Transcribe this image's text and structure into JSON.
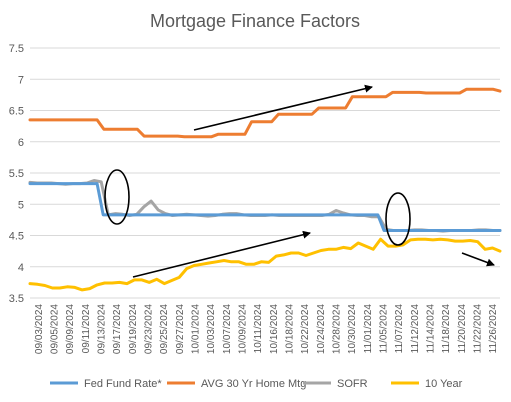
{
  "chart_data": {
    "type": "line",
    "title": "Mortgage Finance Factors",
    "ylim": [
      3.5,
      7.5
    ],
    "yticks": [
      "3.5",
      "4",
      "4.5",
      "5",
      "5.5",
      "6",
      "6.5",
      "7",
      "7.5"
    ],
    "grid": "horizontal",
    "legend_position": "bottom",
    "x_tick_labels": [
      "09/03/2024",
      "09/05/2024",
      "09/09/2024",
      "09/11/2024",
      "09/13/2024",
      "09/17/2024",
      "09/19/2024",
      "09/23/2024",
      "09/25/2024",
      "09/27/2024",
      "10/01/2024",
      "10/03/2024",
      "10/07/2024",
      "10/09/2024",
      "10/11/2024",
      "10/16/2024",
      "10/18/2024",
      "10/22/2024",
      "10/24/2024",
      "10/28/2024",
      "10/30/2024",
      "11/01/2024",
      "11/05/2024",
      "11/07/2024",
      "11/12/2024",
      "11/14/2024",
      "11/18/2024",
      "11/20/2024",
      "11/22/2024",
      "11/26/2024"
    ],
    "series": [
      {
        "name": "Fed Fund Rate*",
        "color": "#5B9BD5",
        "values": [
          5.33,
          5.33,
          5.33,
          5.33,
          5.33,
          5.33,
          5.33,
          5.33,
          5.33,
          5.33,
          5.33,
          5.33,
          4.83,
          4.83,
          4.83,
          4.83,
          4.83,
          4.83,
          4.83,
          4.83,
          4.83,
          4.83,
          4.83,
          4.83,
          4.83,
          4.83,
          4.83,
          4.83,
          4.83,
          4.83,
          4.83,
          4.83,
          4.83,
          4.83,
          4.83,
          4.83,
          4.83,
          4.83,
          4.83,
          4.83,
          4.83,
          4.83,
          4.83,
          4.83,
          4.83,
          4.83,
          4.83,
          4.83,
          4.83,
          4.83,
          4.83,
          4.83,
          4.83,
          4.83,
          4.83,
          4.83,
          4.83,
          4.83,
          4.58,
          4.58,
          4.58,
          4.58,
          4.58,
          4.58,
          4.58,
          4.58,
          4.58,
          4.58,
          4.58,
          4.58,
          4.58,
          4.58,
          4.58,
          4.58,
          4.58,
          4.58,
          4.58,
          4.58
        ]
      },
      {
        "name": "AVG 30 Yr Home Mtg",
        "color": "#ED7D31",
        "values": [
          6.35,
          6.35,
          6.35,
          6.35,
          6.35,
          6.35,
          6.35,
          6.35,
          6.35,
          6.35,
          6.35,
          6.2,
          6.2,
          6.2,
          6.2,
          6.2,
          6.2,
          6.09,
          6.09,
          6.09,
          6.09,
          6.09,
          6.09,
          6.08,
          6.08,
          6.08,
          6.08,
          6.08,
          6.12,
          6.12,
          6.12,
          6.12,
          6.12,
          6.32,
          6.32,
          6.32,
          6.32,
          6.44,
          6.44,
          6.44,
          6.44,
          6.44,
          6.44,
          6.54,
          6.54,
          6.54,
          6.54,
          6.54,
          6.72,
          6.72,
          6.72,
          6.72,
          6.72,
          6.72,
          6.79,
          6.79,
          6.79,
          6.79,
          6.79,
          6.78,
          6.78,
          6.78,
          6.78,
          6.78,
          6.78,
          6.84,
          6.84,
          6.84,
          6.84,
          6.84,
          6.81
        ]
      },
      {
        "name": "SOFR",
        "color": "#A5A5A5",
        "values": [
          5.35,
          5.34,
          5.34,
          5.34,
          5.33,
          5.32,
          5.33,
          5.33,
          5.34,
          5.38,
          5.36,
          4.83,
          4.85,
          4.84,
          4.82,
          4.84,
          4.96,
          5.05,
          4.91,
          4.85,
          4.82,
          4.83,
          4.84,
          4.83,
          4.82,
          4.81,
          4.82,
          4.84,
          4.85,
          4.85,
          4.83,
          4.82,
          4.82,
          4.82,
          4.83,
          4.82,
          4.82,
          4.82,
          4.82,
          4.82,
          4.82,
          4.82,
          4.84,
          4.9,
          4.86,
          4.83,
          4.82,
          4.82,
          4.8,
          4.8,
          4.6,
          4.58,
          4.58,
          4.58,
          4.59,
          4.59,
          4.58,
          4.58,
          4.57,
          4.58,
          4.58,
          4.58,
          4.58,
          4.59,
          4.59,
          4.58,
          4.58
        ]
      },
      {
        "name": "10 Year",
        "color": "#FFC000",
        "values": [
          3.73,
          3.72,
          3.7,
          3.66,
          3.66,
          3.68,
          3.67,
          3.63,
          3.65,
          3.71,
          3.74,
          3.74,
          3.75,
          3.73,
          3.79,
          3.79,
          3.75,
          3.8,
          3.73,
          3.78,
          3.83,
          3.97,
          4.02,
          4.04,
          4.06,
          4.08,
          4.1,
          4.08,
          4.08,
          4.04,
          4.04,
          4.08,
          4.07,
          4.17,
          4.19,
          4.22,
          4.22,
          4.18,
          4.22,
          4.26,
          4.28,
          4.28,
          4.31,
          4.29,
          4.38,
          4.33,
          4.28,
          4.44,
          4.33,
          4.33,
          4.35,
          4.43,
          4.44,
          4.44,
          4.43,
          4.44,
          4.43,
          4.41,
          4.41,
          4.42,
          4.4,
          4.28,
          4.3,
          4.25
        ]
      }
    ]
  }
}
